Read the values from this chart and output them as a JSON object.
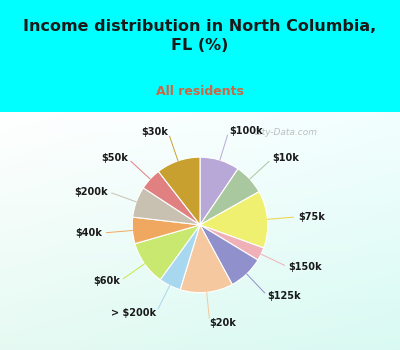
{
  "title": "Income distribution in North Columbia,\nFL (%)",
  "subtitle": "All residents",
  "title_color": "#1a1a1a",
  "subtitle_color": "#cc6644",
  "bg_cyan": "#00FFFF",
  "watermark": "City-Data.com",
  "labels": [
    "$100k",
    "$10k",
    "$75k",
    "$150k",
    "$125k",
    "$20k",
    "> $200k",
    "$60k",
    "$40k",
    "$200k",
    "$50k",
    "$30k"
  ],
  "values": [
    9,
    7,
    13,
    3,
    8,
    12,
    5,
    10,
    6,
    7,
    5,
    10
  ],
  "colors": [
    "#b8a8d8",
    "#aac8a0",
    "#f0f070",
    "#f0b0b8",
    "#9090cc",
    "#f5c8a0",
    "#a8d8f0",
    "#c8e870",
    "#f0a860",
    "#c8c0b0",
    "#e08080",
    "#c8a030"
  ],
  "line_colors": [
    "#b8a8d8",
    "#aac8a0",
    "#f0d040",
    "#f0b0b8",
    "#9090cc",
    "#f5c8a0",
    "#a8d8f0",
    "#c8e840",
    "#f0a860",
    "#c8c0b0",
    "#e08080",
    "#c8a030"
  ]
}
